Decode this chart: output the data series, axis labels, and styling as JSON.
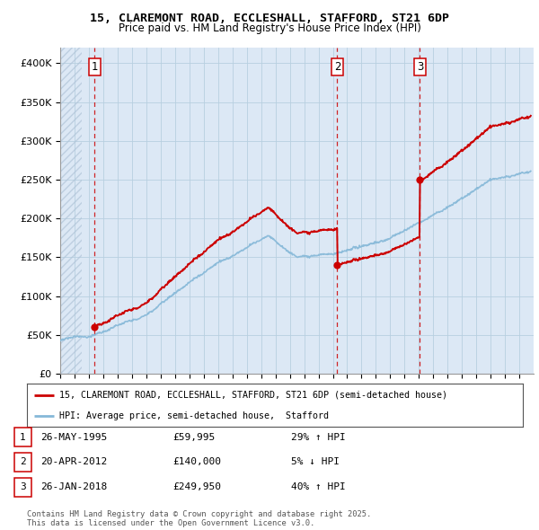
{
  "title1": "15, CLAREMONT ROAD, ECCLESHALL, STAFFORD, ST21 6DP",
  "title2": "Price paid vs. HM Land Registry's House Price Index (HPI)",
  "bg_color": "#dce8f5",
  "grid_color": "#b8cfe0",
  "sale_color": "#cc0000",
  "hpi_color": "#85b8d8",
  "sale_dates": [
    1995.39,
    2012.31,
    2018.07
  ],
  "sale_prices": [
    59995,
    140000,
    249950
  ],
  "legend_sale": "15, CLAREMONT ROAD, ECCLESHALL, STAFFORD, ST21 6DP (semi-detached house)",
  "legend_hpi": "HPI: Average price, semi-detached house,  Stafford",
  "table_rows": [
    [
      "1",
      "26-MAY-1995",
      "£59,995",
      "29% ↑ HPI"
    ],
    [
      "2",
      "20-APR-2012",
      "£140,000",
      "5% ↓ HPI"
    ],
    [
      "3",
      "26-JAN-2018",
      "£249,950",
      "40% ↑ HPI"
    ]
  ],
  "footer": "Contains HM Land Registry data © Crown copyright and database right 2025.\nThis data is licensed under the Open Government Licence v3.0.",
  "ylim": [
    0,
    420000
  ],
  "yticks": [
    0,
    50000,
    100000,
    150000,
    200000,
    250000,
    300000,
    350000,
    400000
  ],
  "ytick_labels": [
    "£0",
    "£50K",
    "£100K",
    "£150K",
    "£200K",
    "£250K",
    "£300K",
    "£350K",
    "£400K"
  ],
  "xlim_start": 1993.0,
  "xlim_end": 2026.0,
  "hatch_end": 1994.5
}
